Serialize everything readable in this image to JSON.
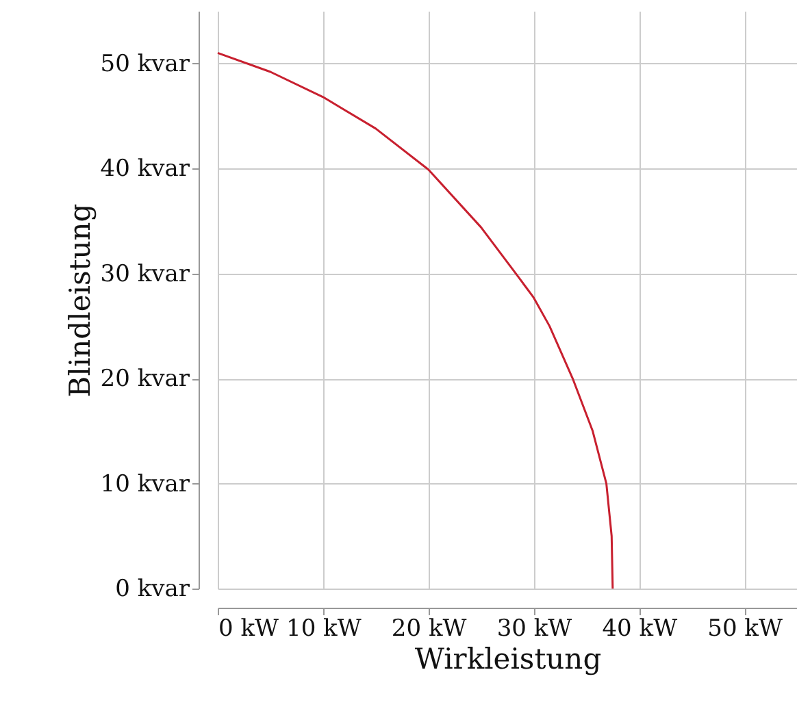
{
  "chart_data": {
    "type": "line",
    "xlabel": "Wirkleistung",
    "ylabel": "Blindleistung",
    "x": [
      0,
      5,
      10,
      15,
      20,
      25,
      28.3,
      30,
      31.5,
      33.7,
      35.6,
      36.9,
      37.4,
      37.5
    ],
    "series": [
      {
        "color": "#c8202f",
        "values": [
          51.0,
          49.2,
          46.8,
          43.8,
          39.9,
          34.4,
          30,
          27.7,
          25,
          20,
          15,
          10,
          5,
          0
        ]
      }
    ],
    "xlim": [
      0,
      55
    ],
    "ylim": [
      0,
      55
    ],
    "xticks": [
      {
        "value": 0,
        "label": "0 kW"
      },
      {
        "value": 10,
        "label": "10 kW"
      },
      {
        "value": 20,
        "label": "20 kW"
      },
      {
        "value": 30,
        "label": "30 kW"
      },
      {
        "value": 40,
        "label": "40 kW"
      },
      {
        "value": 50,
        "label": "50 kW"
      }
    ],
    "yticks": [
      {
        "value": 0,
        "label": "0 kvar"
      },
      {
        "value": 10,
        "label": "10 kvar"
      },
      {
        "value": 20,
        "label": "20 kvar"
      },
      {
        "value": 30,
        "label": "30 kvar"
      },
      {
        "value": 40,
        "label": "40 kvar"
      },
      {
        "value": 50,
        "label": "50 kvar"
      }
    ],
    "grid": true,
    "marker": "none",
    "line_style": "solid"
  }
}
